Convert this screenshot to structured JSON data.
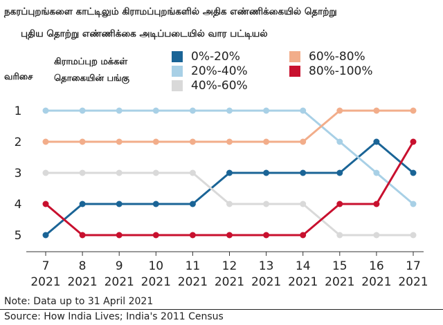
{
  "title_line1": "நகரப்புறங்களை காட்டிலும் கிராமப்புறங்களில் அதிக எண்ணிக்கையில் தொற்று",
  "title_line2": "புதிய தொற்று எண்ணிக்கை அடிப்படையில் வார பட்டியல்",
  "rank_label": "வரிசை",
  "legend_title_line1": "கிராமப்புற மக்கள்",
  "legend_title_line2": "தொகையின் பங்கு",
  "note": "Note: Data up to 31 April 2021",
  "source": "Source: How India Lives; India's 2011 Census",
  "chart_data": {
    "type": "line",
    "subtype": "bump-rank",
    "x": [
      "7 2021",
      "8 2021",
      "9 2021",
      "10 2021",
      "11 2021",
      "12 2021",
      "13 2021",
      "14 2021",
      "15 2021",
      "16 2021",
      "17 2021"
    ],
    "x_ticks": [
      {
        "top": "7",
        "bottom": "2021"
      },
      {
        "top": "8",
        "bottom": "2021"
      },
      {
        "top": "9",
        "bottom": "2021"
      },
      {
        "top": "10",
        "bottom": "2021"
      },
      {
        "top": "11",
        "bottom": "2021"
      },
      {
        "top": "12",
        "bottom": "2021"
      },
      {
        "top": "13",
        "bottom": "2021"
      },
      {
        "top": "14",
        "bottom": "2021"
      },
      {
        "top": "15",
        "bottom": "2021"
      },
      {
        "top": "16",
        "bottom": "2021"
      },
      {
        "top": "17",
        "bottom": "2021"
      }
    ],
    "y_ticks": [
      "1",
      "2",
      "3",
      "4",
      "5"
    ],
    "ylim": [
      1,
      5
    ],
    "y_inverted": true,
    "grid": false,
    "legend_position": "top",
    "series": [
      {
        "name": "0%-20%",
        "color": "#1a6496",
        "values": [
          5,
          4,
          4,
          4,
          4,
          3,
          3,
          3,
          3,
          2,
          3
        ]
      },
      {
        "name": "20%-40%",
        "color": "#a8d0e6",
        "values": [
          1,
          1,
          1,
          1,
          1,
          1,
          1,
          1,
          2,
          3,
          4
        ]
      },
      {
        "name": "40%-60%",
        "color": "#d9d9d9",
        "values": [
          3,
          3,
          3,
          3,
          3,
          4,
          4,
          4,
          5,
          5,
          5
        ]
      },
      {
        "name": "60%-80%",
        "color": "#f2ad8a",
        "values": [
          2,
          2,
          2,
          2,
          2,
          2,
          2,
          2,
          1,
          1,
          1
        ]
      },
      {
        "name": "80%-100%",
        "color": "#c8102e",
        "values": [
          4,
          5,
          5,
          5,
          5,
          5,
          5,
          5,
          4,
          4,
          2
        ]
      }
    ]
  }
}
